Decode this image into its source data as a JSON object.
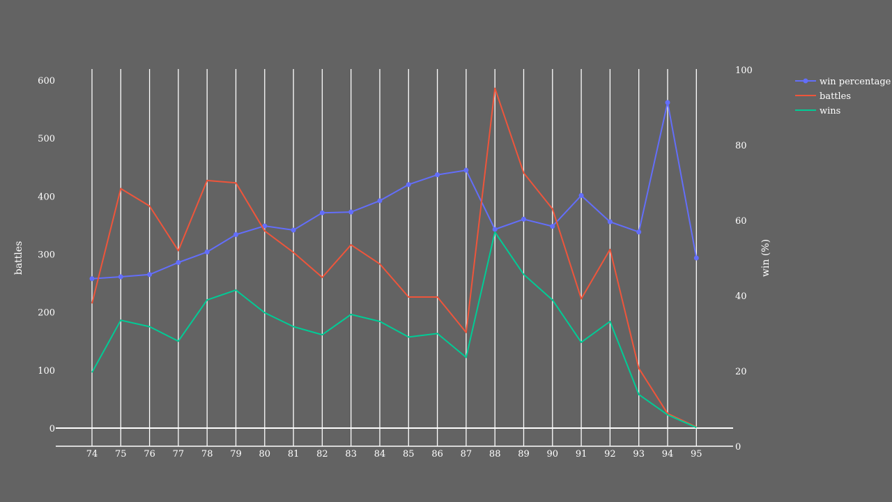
{
  "chart_data": {
    "type": "line",
    "x": [
      "74",
      "75",
      "76",
      "77",
      "78",
      "79",
      "80",
      "81",
      "82",
      "83",
      "84",
      "85",
      "86",
      "87",
      "88",
      "89",
      "90",
      "91",
      "92",
      "93",
      "94",
      "95"
    ],
    "xlabel": "",
    "ylabel": "battles",
    "y2label": "win (%)",
    "ylim": [
      0,
      620
    ],
    "y2lim": [
      0,
      100
    ],
    "yticks": [
      "0",
      "100",
      "200",
      "300",
      "400",
      "500",
      "600"
    ],
    "y2ticks": [
      "0",
      "20",
      "40",
      "60",
      "80",
      "100"
    ],
    "legend_position": "top-right",
    "grid": "vertical",
    "series": [
      {
        "name": "win percentage",
        "axis": "right",
        "color": "#636efa",
        "markers": true,
        "values": [
          44.5,
          45.0,
          45.6,
          48.8,
          51.6,
          56.2,
          58.5,
          57.4,
          62.0,
          62.2,
          65.2,
          69.5,
          72.1,
          73.3,
          57.6,
          60.3,
          58.4,
          66.6,
          59.6,
          56.9,
          91.3,
          50.0
        ]
      },
      {
        "name": "battles",
        "axis": "left",
        "color": "#ef553b",
        "markers": false,
        "values": [
          215,
          413,
          383,
          306,
          427,
          423,
          340,
          303,
          260,
          316,
          283,
          226,
          226,
          165,
          586,
          440,
          378,
          223,
          308,
          103,
          25,
          2
        ]
      },
      {
        "name": "wins",
        "axis": "left",
        "color": "#00cc96",
        "markers": false,
        "values": [
          96,
          186,
          175,
          150,
          221,
          238,
          199,
          175,
          161,
          196,
          184,
          157,
          163,
          122,
          338,
          265,
          221,
          148,
          184,
          58,
          23,
          1
        ]
      }
    ]
  }
}
